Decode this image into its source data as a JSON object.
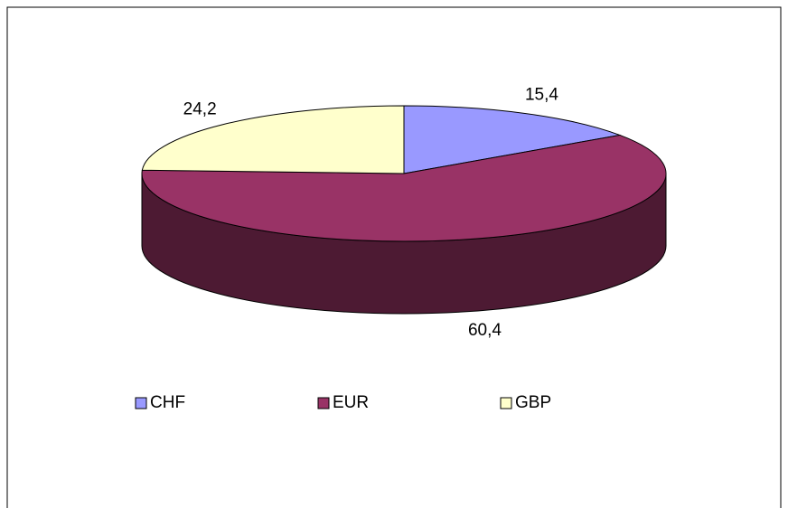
{
  "chart_data": {
    "type": "pie3d",
    "categories": [
      "CHF",
      "EUR",
      "GBP"
    ],
    "values": [
      15.4,
      60.4,
      24.2
    ],
    "value_labels": [
      "15,4",
      "60,4",
      "24,2"
    ],
    "colors": [
      "#9999ff",
      "#993366",
      "#ffffcc"
    ],
    "legend": "bottom"
  }
}
